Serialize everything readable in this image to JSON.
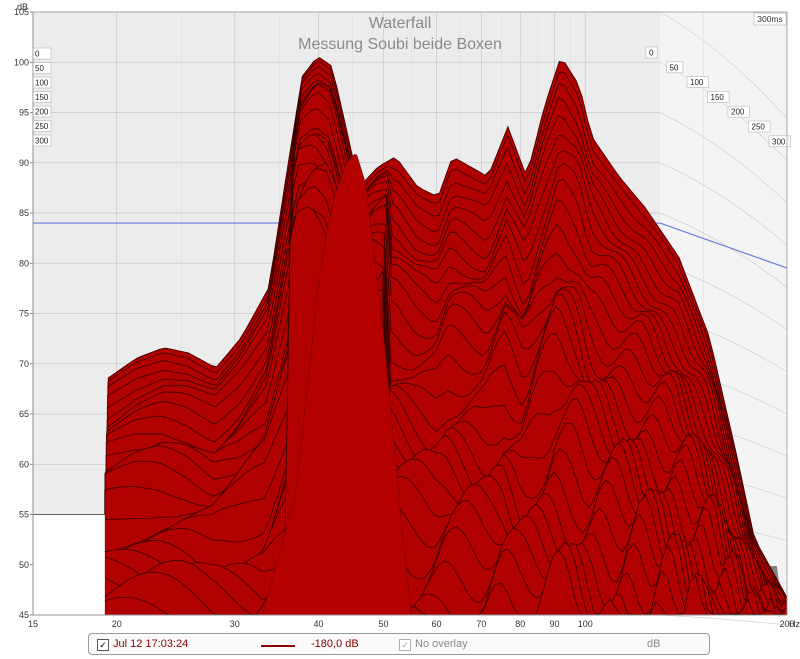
{
  "chart_data": {
    "type": "area",
    "title": "Waterfall",
    "subtitle": "Messung Soubi beide Boxen",
    "ylabel": "dB",
    "xlabel": "Hz",
    "x_scale": "log",
    "xlim": [
      15,
      200
    ],
    "ylim": [
      45,
      105
    ],
    "x_ticks": [
      "15",
      "20",
      "30",
      "40",
      "50",
      "60",
      "70",
      "80",
      "90",
      "100",
      "200"
    ],
    "y_ticks": [
      "105",
      "100",
      "95",
      "90",
      "85",
      "80",
      "75",
      "70",
      "65",
      "60",
      "55",
      "50",
      "45"
    ],
    "time_axis_label": "300ms",
    "time_ticks_left": [
      "0",
      "50",
      "100",
      "150",
      "200",
      "250",
      "300"
    ],
    "time_ticks_right": [
      "0",
      "50",
      "100",
      "150",
      "200",
      "250",
      "300"
    ],
    "series_color": "#b00000",
    "reference_line_db": 84,
    "back_slice_freq_hz": [
      19,
      21,
      23,
      25,
      27.5,
      30,
      33,
      35,
      37,
      39,
      41,
      43,
      45,
      48,
      51,
      55,
      59,
      62,
      66,
      70,
      75,
      80,
      85,
      90,
      96,
      100,
      110,
      120,
      135,
      150,
      165,
      175,
      200
    ],
    "back_slice_db": [
      68,
      70,
      71,
      70.5,
      69,
      72,
      77,
      88,
      98,
      100,
      99,
      93,
      87,
      89,
      90,
      87,
      86,
      90,
      89,
      88,
      93,
      88,
      95,
      100,
      97,
      92,
      88,
      85,
      80,
      72,
      60,
      52,
      45
    ],
    "front_slice_freq_hz": [
      33,
      37,
      40,
      42,
      44,
      45.5,
      47,
      50,
      53,
      55
    ],
    "front_slice_db": [
      45,
      57,
      78,
      86,
      90,
      91,
      88,
      73,
      55,
      45
    ]
  },
  "legend": {
    "checked_mark": "✓",
    "timestamp": "Jul 12 17:03:24",
    "level": "-180,0 dB",
    "overlay": "No overlay",
    "unit": "dB"
  },
  "colors": {
    "fill": "#b00000",
    "outline": "#3a0000",
    "reference": "#6c7bd8",
    "plot_bg": "#ececec",
    "grid": "#c8c8c8"
  }
}
